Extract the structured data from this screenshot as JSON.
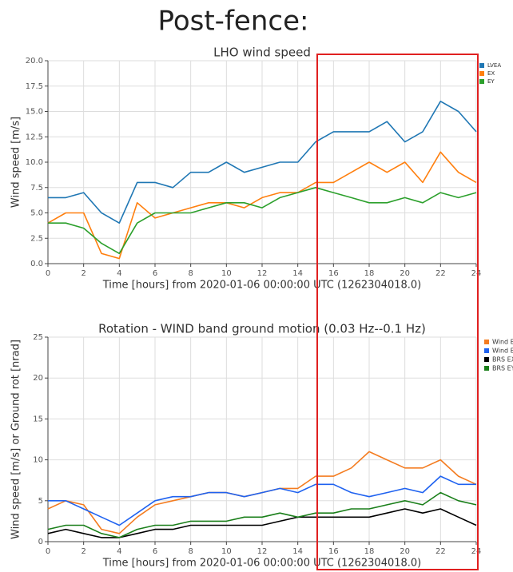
{
  "page_title": "Post-fence:",
  "chart_data": [
    {
      "type": "line",
      "title": "LHO wind speed",
      "x_label": "Time [hours] from 2020-01-06 00:00:00 UTC (1262304018.0)",
      "y_label": "Wind speed [m/s]",
      "x": [
        0,
        1,
        2,
        3,
        4,
        5,
        6,
        7,
        8,
        9,
        10,
        11,
        12,
        13,
        14,
        15,
        16,
        17,
        18,
        19,
        20,
        21,
        22,
        23,
        24
      ],
      "series": [
        {
          "name": "LVEA",
          "color": "#1f77b4",
          "values": [
            6.5,
            6.5,
            7,
            5,
            4,
            8,
            8,
            7.5,
            9,
            9,
            10,
            9,
            9.5,
            10,
            10,
            12,
            13,
            13,
            13,
            14,
            12,
            13,
            16,
            15,
            13
          ]
        },
        {
          "name": "EX",
          "color": "#ff7f0e",
          "values": [
            4,
            5,
            5,
            1,
            0.5,
            6,
            4.5,
            5,
            5.5,
            6,
            6,
            5.5,
            6.5,
            7,
            7,
            8,
            8,
            9,
            10,
            9,
            10,
            8,
            11,
            9,
            8
          ]
        },
        {
          "name": "EY",
          "color": "#2ca02c",
          "values": [
            4,
            4,
            3.5,
            2,
            1,
            4,
            5,
            5,
            5,
            5.5,
            6,
            6,
            5.5,
            6.5,
            7,
            7.5,
            7,
            6.5,
            6,
            6,
            6.5,
            6,
            7,
            6.5,
            7
          ]
        }
      ],
      "xlim": [
        0,
        24
      ],
      "xticks": [
        0,
        2,
        4,
        6,
        8,
        10,
        12,
        14,
        16,
        18,
        20,
        22,
        24
      ],
      "ylim": [
        0,
        20
      ],
      "yticks": [
        {
          "value": 0,
          "label": "0.0"
        },
        2.5,
        {
          "value": 5,
          "label": "5.0"
        },
        7.5,
        {
          "value": 10,
          "label": "10.0"
        },
        12.5,
        {
          "value": 15,
          "label": "15.0"
        },
        17.5,
        {
          "value": 20,
          "label": "20.0"
        }
      ],
      "grid": true
    },
    {
      "type": "line",
      "title": "Rotation - WIND band ground motion (0.03 Hz--0.1 Hz)",
      "x_label": "Time [hours] from 2020-01-06 00:00:00 UTC (1262304018.0)",
      "y_label": "Wind speed [m/s] or Ground rot [nrad]",
      "x": [
        0,
        1,
        2,
        3,
        4,
        5,
        6,
        7,
        8,
        9,
        10,
        11,
        12,
        13,
        14,
        15,
        16,
        17,
        18,
        19,
        20,
        21,
        22,
        23,
        24
      ],
      "series": [
        {
          "name": "Wind E",
          "color": "#f47c20",
          "values": [
            4,
            5,
            4.5,
            1.5,
            1,
            3,
            4.5,
            5,
            5.5,
            6,
            6,
            5.5,
            6,
            6.5,
            6.5,
            8,
            8,
            9,
            11,
            10,
            9,
            9,
            10,
            8,
            7
          ]
        },
        {
          "name": "Wind E",
          "color": "#1f62f0",
          "values": [
            5,
            5,
            4,
            3,
            2,
            3.5,
            5,
            5.5,
            5.5,
            6,
            6,
            5.5,
            6,
            6.5,
            6,
            7,
            7,
            6,
            5.5,
            6,
            6.5,
            6,
            8,
            7,
            7
          ]
        },
        {
          "name": "BRS EX",
          "color": "#000000",
          "values": [
            1,
            1.5,
            1,
            0.5,
            0.5,
            1,
            1.5,
            1.5,
            2,
            2,
            2,
            2,
            2,
            2.5,
            3,
            3,
            3,
            3,
            3,
            3.5,
            4,
            3.5,
            4,
            3,
            2
          ]
        },
        {
          "name": "BRS EY",
          "color": "#1a7f1a",
          "values": [
            1.5,
            2,
            2,
            1,
            0.5,
            1.5,
            2,
            2,
            2.5,
            2.5,
            2.5,
            3,
            3,
            3.5,
            3,
            3.5,
            3.5,
            4,
            4,
            4.5,
            5,
            4.5,
            6,
            5,
            4.5
          ]
        }
      ],
      "xlim": [
        0,
        24
      ],
      "xticks": [
        0,
        2,
        4,
        6,
        8,
        10,
        12,
        14,
        16,
        18,
        20,
        22,
        24
      ],
      "ylim": [
        0,
        25
      ],
      "yticks": [
        0,
        5,
        10,
        15,
        20,
        25
      ],
      "grid": true
    }
  ]
}
